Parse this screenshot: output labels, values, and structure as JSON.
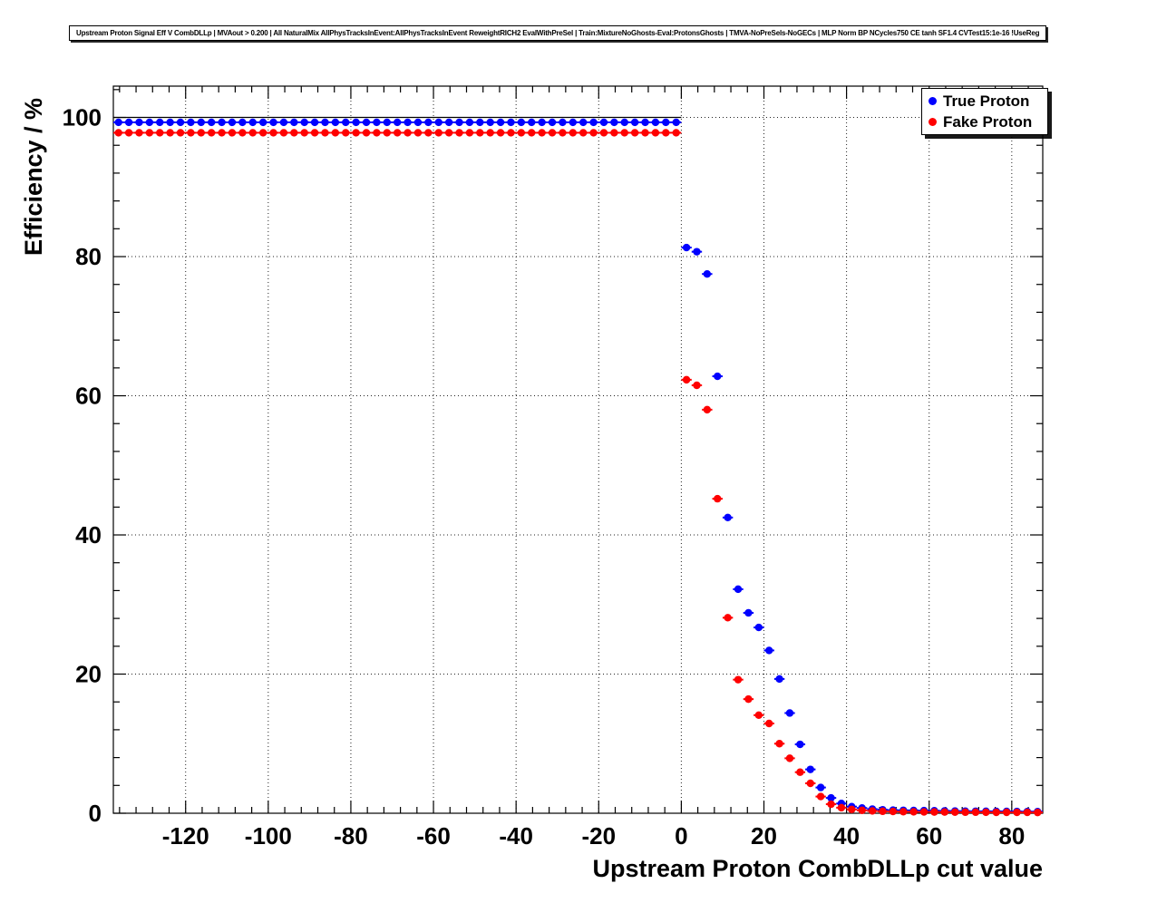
{
  "header": {
    "title": "Upstream Proton Signal Eff V CombDLLp | MVAout > 0.200 | All NaturalMix AllPhysTracksInEvent:AllPhysTracksInEvent ReweightRICH2 EvalWithPreSel | Train:MixtureNoGhosts-Eval:ProtonsGhosts | TMVA-NoPreSels-NoGECs | MLP Norm BP NCycles750 CE tanh SF1.4 CVTest15:1e-16 !UseReg"
  },
  "chart_data": {
    "type": "scatter",
    "title": "Upstream Proton Signal Eff V CombDLLp | MVAout > 0.200 | All NaturalMix AllPhysTracksInEvent:AllPhysTracksInEvent ReweightRICH2 EvalWithPreSel | Train:MixtureNoGhosts-Eval:ProtonsGhosts | TMVA-NoPreSels-NoGECs | MLP Norm BP NCycles750 CE tanh SF1.4 CVTest15:1e-16 !UseReg",
    "xlabel": "Upstream Proton CombDLLp cut value",
    "ylabel": "Efficiency / %",
    "xlim": [
      -137.5,
      87.5
    ],
    "ylim": [
      0,
      104.5
    ],
    "x_ticks": [
      -120,
      -100,
      -80,
      -60,
      -40,
      -20,
      0,
      20,
      40,
      60,
      80
    ],
    "y_ticks": [
      0,
      20,
      40,
      60,
      80,
      100
    ],
    "x_minor_step": 4,
    "y_minor_step": 4,
    "grid": true,
    "legend_position": "top-right",
    "reference_line": {
      "y": 100,
      "x_start": -137.5,
      "x_end": 0
    },
    "bin_half_width": 1.25,
    "x": [
      -136.25,
      -133.75,
      -131.25,
      -128.75,
      -126.25,
      -123.75,
      -121.25,
      -118.75,
      -116.25,
      -113.75,
      -111.25,
      -108.75,
      -106.25,
      -103.75,
      -101.25,
      -98.75,
      -96.25,
      -93.75,
      -91.25,
      -88.75,
      -86.25,
      -83.75,
      -81.25,
      -78.75,
      -76.25,
      -73.75,
      -71.25,
      -68.75,
      -66.25,
      -63.75,
      -61.25,
      -58.75,
      -56.25,
      -53.75,
      -51.25,
      -48.75,
      -46.25,
      -43.75,
      -41.25,
      -38.75,
      -36.25,
      -33.75,
      -31.25,
      -28.75,
      -26.25,
      -23.75,
      -21.25,
      -18.75,
      -16.25,
      -13.75,
      -11.25,
      -8.75,
      -6.25,
      -3.75,
      -1.25,
      1.25,
      3.75,
      6.25,
      8.75,
      11.25,
      13.75,
      16.25,
      18.75,
      21.25,
      23.75,
      26.25,
      28.75,
      31.25,
      33.75,
      36.25,
      38.75,
      41.25,
      43.75,
      46.25,
      48.75,
      51.25,
      53.75,
      56.25,
      58.75,
      61.25,
      63.75,
      66.25,
      68.75,
      71.25,
      73.75,
      76.25,
      78.75,
      81.25,
      83.75,
      86.25
    ],
    "series": [
      {
        "name": "True Proton",
        "color": "#0000ff",
        "marker": "circle",
        "values": [
          99.3,
          99.3,
          99.3,
          99.3,
          99.3,
          99.3,
          99.3,
          99.3,
          99.3,
          99.3,
          99.3,
          99.3,
          99.3,
          99.3,
          99.3,
          99.3,
          99.3,
          99.3,
          99.3,
          99.3,
          99.3,
          99.3,
          99.3,
          99.3,
          99.3,
          99.3,
          99.3,
          99.3,
          99.3,
          99.3,
          99.3,
          99.3,
          99.3,
          99.3,
          99.3,
          99.3,
          99.3,
          99.3,
          99.3,
          99.3,
          99.3,
          99.3,
          99.3,
          99.3,
          99.3,
          99.3,
          99.3,
          99.3,
          99.3,
          99.3,
          99.3,
          99.3,
          99.3,
          99.3,
          99.3,
          81.3,
          80.7,
          77.5,
          62.8,
          42.5,
          32.2,
          28.8,
          26.7,
          23.4,
          19.3,
          14.4,
          9.9,
          6.3,
          3.7,
          2.2,
          1.4,
          0.95,
          0.75,
          0.6,
          0.5,
          0.45,
          0.42,
          0.4,
          0.38,
          0.36,
          0.34,
          0.32,
          0.3,
          0.29,
          0.28,
          0.27,
          0.26,
          0.25,
          0.24,
          0.23
        ]
      },
      {
        "name": "Fake Proton",
        "color": "#ff0000",
        "marker": "circle",
        "values": [
          97.8,
          97.8,
          97.8,
          97.8,
          97.8,
          97.8,
          97.8,
          97.8,
          97.8,
          97.8,
          97.8,
          97.8,
          97.8,
          97.8,
          97.8,
          97.8,
          97.8,
          97.8,
          97.8,
          97.8,
          97.8,
          97.8,
          97.8,
          97.8,
          97.8,
          97.8,
          97.8,
          97.8,
          97.8,
          97.8,
          97.8,
          97.8,
          97.8,
          97.8,
          97.8,
          97.8,
          97.8,
          97.8,
          97.8,
          97.8,
          97.8,
          97.8,
          97.8,
          97.8,
          97.8,
          97.8,
          97.8,
          97.8,
          97.8,
          97.8,
          97.8,
          97.8,
          97.8,
          97.8,
          97.8,
          62.3,
          61.5,
          58.0,
          45.2,
          28.1,
          19.2,
          16.4,
          14.1,
          12.9,
          10.0,
          7.9,
          5.9,
          4.3,
          2.4,
          1.3,
          0.8,
          0.55,
          0.42,
          0.33,
          0.28,
          0.25,
          0.22,
          0.2,
          0.19,
          0.18,
          0.17,
          0.16,
          0.15,
          0.15,
          0.14,
          0.13,
          0.13,
          0.12,
          0.12,
          0.11
        ]
      }
    ]
  }
}
